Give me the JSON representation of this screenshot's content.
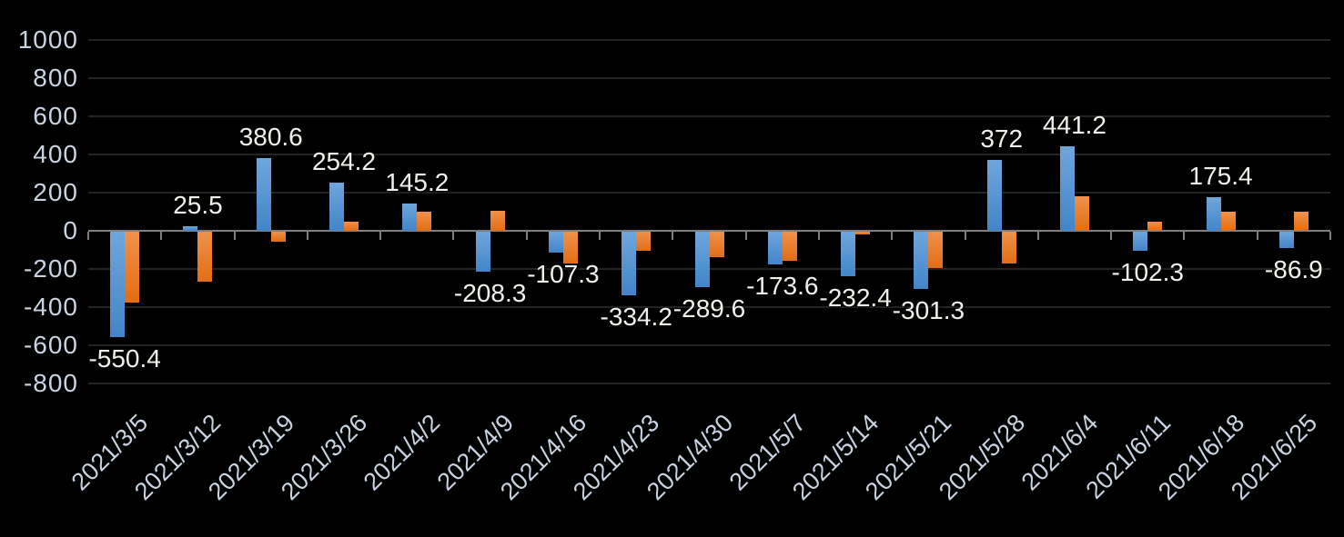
{
  "chart_data": {
    "type": "bar",
    "title": "",
    "xlabel": "",
    "ylabel": "",
    "legend": "none",
    "grid": true,
    "categories": [
      "2021/3/5",
      "2021/3/12",
      "2021/3/19",
      "2021/3/26",
      "2021/4/2",
      "2021/4/9",
      "2021/4/16",
      "2021/4/23",
      "2021/4/30",
      "2021/5/7",
      "2021/5/14",
      "2021/5/21",
      "2021/5/28",
      "2021/6/4",
      "2021/6/11",
      "2021/6/18",
      "2021/6/25"
    ],
    "series": [
      {
        "name": "blue",
        "color": "#5B9BD5",
        "color_top": "#6FA6DC",
        "color_bottom": "#4285C8",
        "values": [
          -550.4,
          25.5,
          380.6,
          254.2,
          145.2,
          -208.3,
          -107.3,
          -334.2,
          -289.6,
          -173.6,
          -232.4,
          -301.3,
          372,
          441.2,
          -102.3,
          175.4,
          -86.9
        ]
      },
      {
        "name": "orange",
        "color": "#ED7D31",
        "color_top": "#F0914C",
        "color_bottom": "#E26D13",
        "values": [
          -370,
          -260,
          -50,
          50,
          100,
          105,
          -165,
          -100,
          -135,
          -150,
          -15,
          -190,
          -165,
          180,
          50,
          100,
          100
        ]
      }
    ],
    "data_labels": {
      "series": "blue",
      "values": [
        "-550.4",
        "25.5",
        "380.6",
        "254.2",
        "145.2",
        "-208.3",
        "-107.3",
        "-334.2",
        "-289.6",
        "-173.6",
        "-232.4",
        "-301.3",
        "372",
        "441.2",
        "-102.3",
        "175.4",
        "-86.9"
      ]
    },
    "ylim": [
      -800,
      1000
    ],
    "ytick_step": 200,
    "ytick_labels": [
      "1000",
      "800",
      "600",
      "400",
      "200",
      "0",
      "-200",
      "-400",
      "-600",
      "-800"
    ],
    "colors": {
      "background": "#000000",
      "gridline": "#232323",
      "axis": "#7F7F7F",
      "tick_label": "#C9D3E2",
      "data_label": "#F2F0EB"
    }
  }
}
